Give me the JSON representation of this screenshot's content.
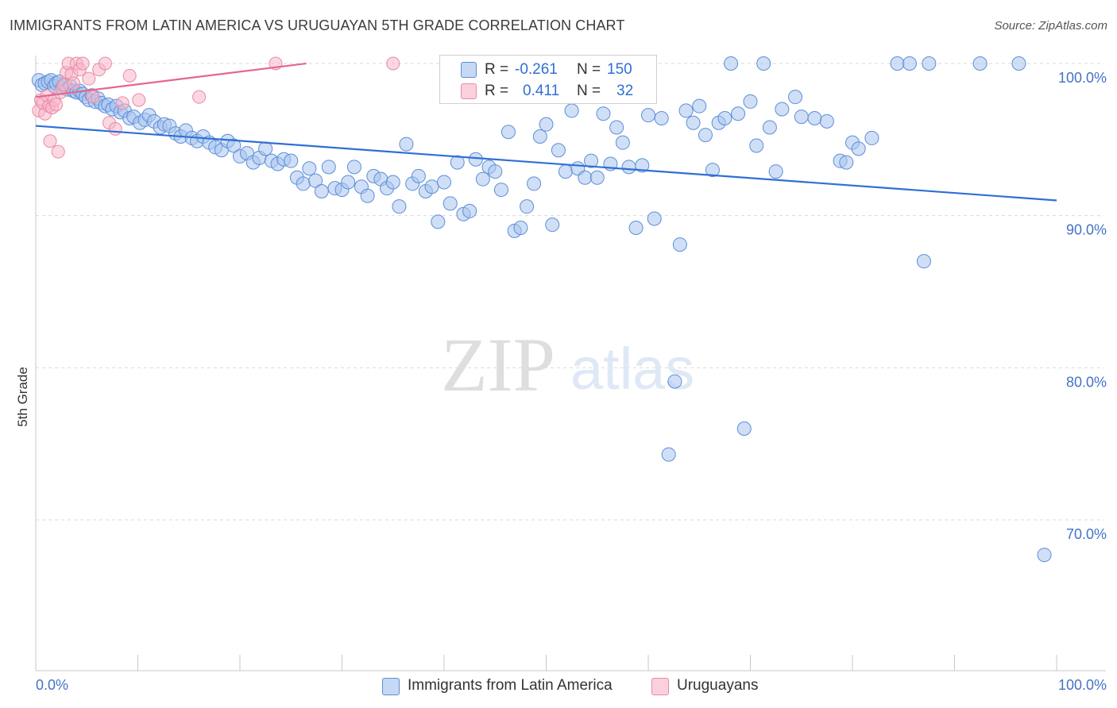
{
  "header": {
    "title": "IMMIGRANTS FROM LATIN AMERICA VS URUGUAYAN 5TH GRADE CORRELATION CHART",
    "source": "Source: ZipAtlas.com"
  },
  "colors": {
    "blue_fill": "#a9c5ee",
    "blue_stroke": "#5b8fd8",
    "blue_line": "#2f6fd6",
    "pink_fill": "#f7b6c9",
    "pink_stroke": "#e88aa6",
    "pink_line": "#e4668f",
    "grid": "#d9d9d9",
    "tick_text": "#4472c4"
  },
  "legend": {
    "r_label": "R =",
    "n_label": "N =",
    "series1": {
      "r": "-0.261",
      "n": "150"
    },
    "series2": {
      "r": "0.411",
      "n": "32"
    }
  },
  "watermark": {
    "zip": "ZIP",
    "atlas": "atlas"
  },
  "chart_data": {
    "type": "scatter",
    "title": "IMMIGRANTS FROM LATIN AMERICA VS URUGUAYAN 5TH GRADE CORRELATION CHART",
    "xlabel": "",
    "ylabel": "5th Grade",
    "xlim": [
      0,
      100
    ],
    "ylim": [
      60,
      101.5
    ],
    "x_tick_labels": [
      "0.0%",
      "100.0%"
    ],
    "y_ticks": [
      70,
      80,
      90,
      100
    ],
    "y_tick_labels": [
      "70.0%",
      "80.0%",
      "90.0%",
      "100.0%"
    ],
    "series": [
      {
        "name": "Immigrants from Latin America",
        "trend": [
          [
            0,
            95.9
          ],
          [
            100,
            91.0
          ]
        ],
        "points": [
          [
            0.3,
            98.9
          ],
          [
            0.6,
            98.6
          ],
          [
            0.9,
            98.7
          ],
          [
            1.2,
            98.8
          ],
          [
            1.5,
            98.9
          ],
          [
            1.8,
            98.5
          ],
          [
            2.0,
            98.7
          ],
          [
            2.3,
            98.8
          ],
          [
            2.6,
            98.4
          ],
          [
            2.9,
            98.6
          ],
          [
            3.1,
            98.3
          ],
          [
            3.4,
            98.5
          ],
          [
            3.7,
            98.2
          ],
          [
            4.0,
            98.1
          ],
          [
            4.3,
            98.2
          ],
          [
            4.6,
            98.0
          ],
          [
            4.9,
            97.8
          ],
          [
            5.2,
            97.6
          ],
          [
            5.5,
            97.9
          ],
          [
            5.8,
            97.5
          ],
          [
            6.1,
            97.7
          ],
          [
            6.4,
            97.4
          ],
          [
            6.8,
            97.2
          ],
          [
            7.1,
            97.3
          ],
          [
            7.5,
            97.0
          ],
          [
            7.9,
            97.2
          ],
          [
            8.3,
            96.8
          ],
          [
            8.7,
            96.9
          ],
          [
            9.2,
            96.4
          ],
          [
            9.6,
            96.5
          ],
          [
            10.2,
            96.1
          ],
          [
            10.7,
            96.3
          ],
          [
            11.1,
            96.6
          ],
          [
            11.6,
            96.2
          ],
          [
            12.2,
            95.8
          ],
          [
            12.6,
            96.0
          ],
          [
            13.1,
            95.9
          ],
          [
            13.7,
            95.4
          ],
          [
            14.2,
            95.2
          ],
          [
            14.7,
            95.6
          ],
          [
            15.3,
            95.1
          ],
          [
            15.8,
            94.9
          ],
          [
            16.4,
            95.2
          ],
          [
            17.0,
            94.8
          ],
          [
            17.6,
            94.5
          ],
          [
            18.2,
            94.3
          ],
          [
            18.8,
            94.9
          ],
          [
            19.4,
            94.6
          ],
          [
            20.0,
            93.9
          ],
          [
            20.7,
            94.1
          ],
          [
            21.3,
            93.5
          ],
          [
            21.9,
            93.8
          ],
          [
            22.5,
            94.4
          ],
          [
            23.1,
            93.6
          ],
          [
            23.7,
            93.4
          ],
          [
            24.3,
            93.7
          ],
          [
            25.0,
            93.6
          ],
          [
            25.6,
            92.5
          ],
          [
            26.2,
            92.1
          ],
          [
            26.8,
            93.1
          ],
          [
            27.4,
            92.3
          ],
          [
            28.0,
            91.6
          ],
          [
            28.7,
            93.2
          ],
          [
            29.3,
            91.8
          ],
          [
            30.0,
            91.7
          ],
          [
            30.6,
            92.2
          ],
          [
            31.2,
            93.2
          ],
          [
            31.9,
            91.9
          ],
          [
            32.5,
            91.3
          ],
          [
            33.1,
            92.6
          ],
          [
            33.8,
            92.4
          ],
          [
            34.4,
            91.8
          ],
          [
            35.0,
            92.2
          ],
          [
            35.6,
            90.6
          ],
          [
            36.3,
            94.7
          ],
          [
            36.9,
            92.1
          ],
          [
            37.5,
            92.6
          ],
          [
            38.2,
            91.6
          ],
          [
            38.8,
            91.9
          ],
          [
            39.4,
            89.6
          ],
          [
            40.0,
            92.2
          ],
          [
            40.6,
            90.8
          ],
          [
            41.3,
            93.5
          ],
          [
            41.9,
            90.1
          ],
          [
            42.5,
            90.3
          ],
          [
            43.1,
            93.7
          ],
          [
            43.8,
            92.4
          ],
          [
            44.4,
            93.2
          ],
          [
            45.0,
            92.9
          ],
          [
            45.6,
            91.7
          ],
          [
            46.3,
            95.5
          ],
          [
            46.9,
            89.0
          ],
          [
            47.5,
            89.2
          ],
          [
            48.1,
            90.6
          ],
          [
            48.8,
            92.1
          ],
          [
            49.4,
            95.2
          ],
          [
            50.0,
            96.0
          ],
          [
            50.6,
            89.4
          ],
          [
            51.2,
            94.3
          ],
          [
            51.9,
            92.9
          ],
          [
            52.5,
            96.9
          ],
          [
            53.1,
            93.1
          ],
          [
            53.8,
            92.5
          ],
          [
            54.4,
            93.6
          ],
          [
            55.0,
            92.5
          ],
          [
            55.6,
            96.7
          ],
          [
            56.3,
            93.4
          ],
          [
            56.9,
            95.8
          ],
          [
            57.5,
            94.8
          ],
          [
            58.1,
            93.2
          ],
          [
            58.8,
            89.2
          ],
          [
            59.4,
            93.3
          ],
          [
            60.0,
            96.6
          ],
          [
            60.6,
            89.8
          ],
          [
            61.3,
            96.4
          ],
          [
            62.0,
            74.3
          ],
          [
            62.6,
            79.1
          ],
          [
            63.1,
            88.1
          ],
          [
            63.7,
            96.9
          ],
          [
            64.4,
            96.1
          ],
          [
            65.0,
            97.2
          ],
          [
            65.6,
            95.3
          ],
          [
            66.3,
            93.0
          ],
          [
            66.9,
            96.1
          ],
          [
            67.5,
            96.4
          ],
          [
            68.1,
            100.0
          ],
          [
            68.8,
            96.7
          ],
          [
            69.4,
            76.0
          ],
          [
            70.0,
            97.5
          ],
          [
            70.6,
            94.6
          ],
          [
            71.3,
            100.0
          ],
          [
            71.9,
            95.8
          ],
          [
            72.5,
            92.9
          ],
          [
            73.1,
            97.0
          ],
          [
            74.4,
            97.8
          ],
          [
            75.0,
            96.5
          ],
          [
            76.3,
            96.4
          ],
          [
            77.5,
            96.2
          ],
          [
            78.8,
            93.6
          ],
          [
            79.4,
            93.5
          ],
          [
            80.0,
            94.8
          ],
          [
            80.6,
            94.4
          ],
          [
            81.9,
            95.1
          ],
          [
            84.4,
            100.0
          ],
          [
            85.6,
            100.0
          ],
          [
            87.0,
            87.0
          ],
          [
            87.5,
            100.0
          ],
          [
            92.5,
            100.0
          ],
          [
            96.3,
            100.0
          ],
          [
            98.8,
            67.7
          ]
        ]
      },
      {
        "name": "Uruguayans",
        "trend": [
          [
            0,
            97.8
          ],
          [
            26.5,
            100.0
          ]
        ],
        "points": [
          [
            0.3,
            96.9
          ],
          [
            0.5,
            97.6
          ],
          [
            0.7,
            97.4
          ],
          [
            0.9,
            96.7
          ],
          [
            1.1,
            97.9
          ],
          [
            1.3,
            97.2
          ],
          [
            1.4,
            94.9
          ],
          [
            1.6,
            97.1
          ],
          [
            1.8,
            97.6
          ],
          [
            2.0,
            97.3
          ],
          [
            2.2,
            94.2
          ],
          [
            2.4,
            98.1
          ],
          [
            2.7,
            98.6
          ],
          [
            3.0,
            99.4
          ],
          [
            3.2,
            100.0
          ],
          [
            3.5,
            99.3
          ],
          [
            3.7,
            98.7
          ],
          [
            4.0,
            100.0
          ],
          [
            4.3,
            99.6
          ],
          [
            4.6,
            100.0
          ],
          [
            5.2,
            99.0
          ],
          [
            5.6,
            97.8
          ],
          [
            6.2,
            99.6
          ],
          [
            6.8,
            100.0
          ],
          [
            7.2,
            96.1
          ],
          [
            7.8,
            95.7
          ],
          [
            8.5,
            97.4
          ],
          [
            9.2,
            99.2
          ],
          [
            10.1,
            97.6
          ],
          [
            16.0,
            97.8
          ],
          [
            23.5,
            100.0
          ],
          [
            35.0,
            100.0
          ]
        ]
      }
    ]
  },
  "bottom_legend": {
    "item1": "Immigrants from Latin America",
    "item2": "Uruguayans"
  }
}
